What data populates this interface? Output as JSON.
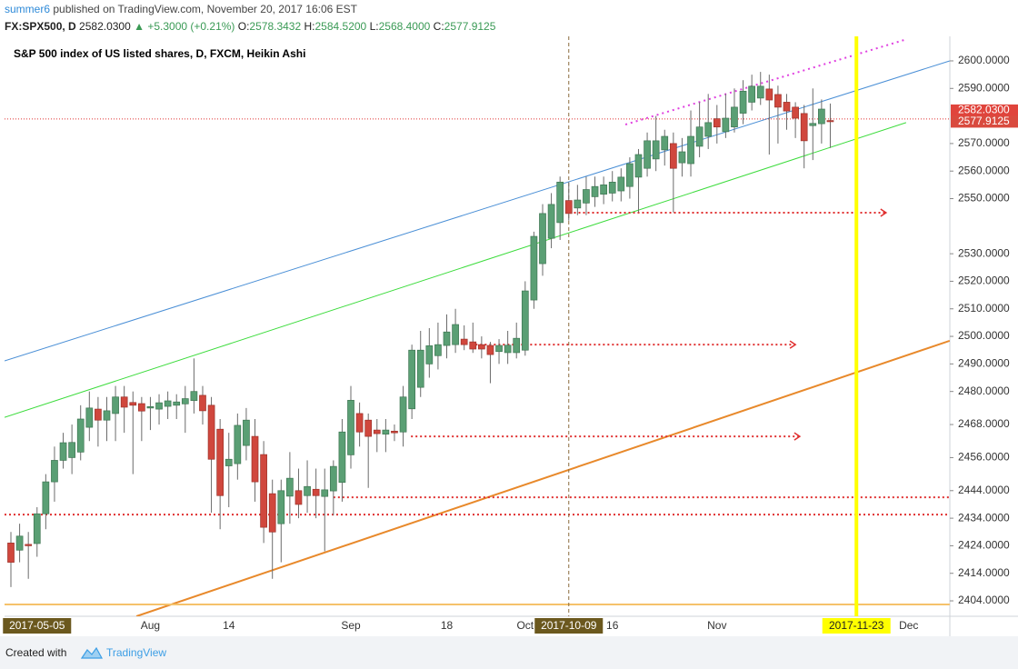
{
  "header": {
    "author": "summer6",
    "published": "published on TradingView.com, November 20, 2017 16:06 EST",
    "symbol": "FX:SPX500, D",
    "change": "▲ +5.3000 (+0.21%)",
    "ohlc": [
      {
        "key": "O:",
        "value": "2578.3432"
      },
      {
        "key": "H:",
        "value": "2584.5200"
      },
      {
        "key": "L:",
        "value": "2568.4000"
      },
      {
        "key": "C:",
        "value": "2577.9125"
      }
    ]
  },
  "footer": {
    "created_with": "Created with",
    "brand": "TradingView"
  },
  "chart_data": {
    "type": "candlestick",
    "title": "S&P 500 index of US listed shares, D, FXCM, Heikin Ashi",
    "up_color": "#5a9f74",
    "down_color": "#d0473d",
    "wick_color": "#6b6b6b",
    "categories": [
      null,
      null,
      null,
      "2017-05-05",
      null,
      null,
      null,
      null,
      null,
      null,
      null,
      null,
      null,
      null,
      null,
      null,
      "Aug",
      null,
      null,
      null,
      null,
      null,
      null,
      null,
      null,
      "14",
      null,
      null,
      null,
      null,
      null,
      null,
      null,
      null,
      null,
      null,
      null,
      null,
      null,
      "Sep",
      null,
      null,
      null,
      null,
      null,
      null,
      null,
      null,
      null,
      null,
      "18",
      null,
      null,
      null,
      null,
      null,
      null,
      null,
      null,
      "Oct",
      null,
      null,
      null,
      null,
      "2017-10-09",
      null,
      null,
      null,
      null,
      "16",
      null,
      null,
      null,
      null,
      null,
      null,
      null,
      null,
      null,
      null,
      null,
      "Nov",
      null,
      null,
      null,
      null,
      null,
      null,
      null,
      null,
      null,
      null,
      null,
      null,
      null,
      null,
      null,
      "2017-11-23",
      null,
      null,
      null,
      null,
      null,
      "Dec",
      null,
      null,
      null,
      null
    ],
    "open": [
      2425,
      2422.4,
      2424.5,
      2424.8,
      2435.6,
      2447.2,
      2455,
      2456,
      2458,
      2467,
      2473.6,
      2469.6,
      2472,
      2478,
      2476,
      2475.6,
      2474,
      2473.6,
      2474.6,
      2475,
      2475.5,
      2476.7,
      2478.6,
      2475,
      2466.3,
      2453,
      2453.8,
      2460.4,
      2463.7,
      2457.1,
      2442.9,
      2432,
      2442,
      2444,
      2442.2,
      2444.5,
      2441.9,
      2443.9,
      2447,
      2457,
      2472,
      2469.6,
      2466,
      2464.5,
      2465.6,
      2465.3,
      2473.7,
      2481.5,
      2490,
      2493,
      2496.7,
      2497,
      2499,
      2498,
      2497,
      2496.7,
      2494.5,
      2494.1,
      2494.1,
      2495,
      2513.2,
      2526.4,
      2535.6,
      2541.3,
      2549.3,
      2546.6,
      2548.4,
      2550.7,
      2551.6,
      2552,
      2552.8,
      2554.4,
      2557.8,
      2561,
      2564.4,
      2567.7,
      2570,
      2563,
      2562.7,
      2569,
      2572.6,
      2579,
      2574.3,
      2576,
      2581,
      2585,
      2586.5,
      2589.8,
      2587.8,
      2585,
      2583.2,
      2580.9,
      2576.5,
      2577.2,
      2578.3432,
      null,
      null,
      null,
      null,
      null,
      null,
      null,
      null,
      null,
      null,
      null,
      null,
      null
    ],
    "high": [
      2429,
      2432,
      2429,
      2438,
      2450,
      2460,
      2465,
      2468,
      2475,
      2480,
      2478,
      2478,
      2482,
      2482,
      2480,
      2478,
      2478,
      2479,
      2480,
      2479,
      2482,
      2492,
      2482,
      2478,
      2470,
      2465,
      2472,
      2474,
      2470,
      2462,
      2448,
      2448,
      2458,
      2452,
      2455,
      2452,
      2452,
      2455,
      2470,
      2482,
      2476,
      2472,
      2470,
      2470,
      2468,
      2482,
      2497,
      2502,
      2503,
      2505,
      2508,
      2510,
      2504,
      2505,
      2500,
      2498,
      2499,
      2502,
      2505,
      2520,
      2538,
      2548,
      2552,
      2558,
      2556,
      2555,
      2558,
      2558,
      2558,
      2560,
      2561,
      2565,
      2568,
      2574,
      2580,
      2575,
      2574,
      2572,
      2582,
      2585,
      2588,
      2584,
      2588,
      2590,
      2593,
      2595,
      2596,
      2595,
      2591,
      2588,
      2585,
      2584,
      2590,
      2586,
      2584.52,
      null,
      null,
      null,
      null,
      null,
      null,
      null,
      null,
      null,
      null,
      null,
      null,
      null
    ],
    "low": [
      2409,
      2418,
      2412,
      2420,
      2430,
      2440,
      2452,
      2450,
      2455,
      2462,
      2460,
      2462,
      2462,
      2465,
      2450,
      2462,
      2466,
      2468,
      2470,
      2470,
      2465,
      2472,
      2468,
      2436,
      2430,
      2438,
      2448,
      2455,
      2440,
      2425,
      2412,
      2418,
      2432,
      2434,
      2436,
      2434,
      2422,
      2435,
      2440,
      2452,
      2460,
      2445,
      2458,
      2458,
      2462,
      2460,
      2470,
      2478,
      2485,
      2488,
      2492,
      2494,
      2495,
      2494,
      2492,
      2483,
      2490,
      2490,
      2492,
      2493,
      2510,
      2522,
      2532,
      2535,
      2542,
      2544,
      2544,
      2547,
      2548,
      2549,
      2549,
      2550,
      2545,
      2558,
      2560,
      2562,
      2545,
      2558,
      2558,
      2565,
      2568,
      2570,
      2572,
      2574,
      2577,
      2582,
      2584,
      2566,
      2570,
      2575,
      2572,
      2561,
      2564,
      2570,
      2568.4,
      null,
      null,
      null,
      null,
      null,
      null,
      null,
      null,
      null,
      null,
      null,
      null,
      null
    ],
    "close": [
      2418,
      2427.5,
      2424,
      2435.6,
      2447.2,
      2455,
      2461.4,
      2461.5,
      2470,
      2474,
      2469.6,
      2473,
      2478,
      2474.3,
      2475,
      2472.9,
      2474.5,
      2475.9,
      2476.6,
      2476.2,
      2477.4,
      2480,
      2473,
      2455.4,
      2442.2,
      2455.4,
      2467.7,
      2469.6,
      2447.2,
      2430.7,
      2429,
      2444,
      2448.5,
      2439,
      2445.5,
      2442.2,
      2444.3,
      2452.8,
      2465.3,
      2476.8,
      2465.3,
      2463.7,
      2464.7,
      2466,
      2465,
      2478,
      2495,
      2495,
      2496.6,
      2497,
      2501.6,
      2504.3,
      2497,
      2495.4,
      2495.4,
      2493.4,
      2496.7,
      2496.8,
      2499.3,
      2516.5,
      2536.3,
      2544.6,
      2547.9,
      2556,
      2544.6,
      2549.5,
      2553.3,
      2554.4,
      2555,
      2556,
      2557.8,
      2562.7,
      2566,
      2571,
      2571,
      2572.6,
      2561,
      2567,
      2572.6,
      2576,
      2577.6,
      2576,
      2579.2,
      2583.2,
      2589,
      2590.8,
      2590.8,
      2585.8,
      2583.2,
      2581.8,
      2579.2,
      2571,
      2577.3,
      2582.5,
      2577.9125,
      null,
      null,
      null,
      null,
      null,
      null,
      null,
      null,
      null,
      null,
      null,
      null,
      null
    ],
    "ylim": [
      2398.4,
      2608.9
    ],
    "yticks": [
      {
        "value": 2600,
        "label": "2600.0000"
      },
      {
        "value": 2590,
        "label": "2590.0000"
      },
      {
        "value": 2570,
        "label": "2570.0000"
      },
      {
        "value": 2560,
        "label": "2560.0000"
      },
      {
        "value": 2550,
        "label": "2550.0000"
      },
      {
        "value": 2530,
        "label": "2530.0000"
      },
      {
        "value": 2520,
        "label": "2520.0000"
      },
      {
        "value": 2510,
        "label": "2510.0000"
      },
      {
        "value": 2500,
        "label": "2500.0000"
      },
      {
        "value": 2490,
        "label": "2490.0000"
      },
      {
        "value": 2480,
        "label": "2480.0000"
      },
      {
        "value": 2468,
        "label": "2468.0000"
      },
      {
        "value": 2456,
        "label": "2456.0000"
      },
      {
        "value": 2444,
        "label": "2444.0000"
      },
      {
        "value": 2434,
        "label": "2434.0000"
      },
      {
        "value": 2424,
        "label": "2424.0000"
      },
      {
        "value": 2414,
        "label": "2414.0000"
      },
      {
        "value": 2404,
        "label": "2404.0000"
      }
    ],
    "price_lines": [
      {
        "value": 2582.03,
        "label": "2582.0300",
        "color": "#e0443c"
      },
      {
        "value": 2577.9125,
        "label": "2577.9125",
        "color": "#d94a3e"
      }
    ],
    "x_markers": [
      {
        "index": 3,
        "color": "#6b581e",
        "text_color": "#ffffff"
      },
      {
        "index": 64,
        "color": "#6b581e",
        "text_color": "#ffffff",
        "line": "dashed",
        "line_color": "#8b6b3d"
      },
      {
        "index": 97,
        "color": "#ffff00",
        "text_color": "#222222",
        "line": "solid",
        "line_color": "#ffff00"
      }
    ],
    "drawings": [
      {
        "color": "#4a8fd6",
        "from": [
          -0.73,
          2491.1
        ],
        "to": [
          107.7,
          2600
        ]
      },
      {
        "color": "#3ddc3d",
        "from": [
          -0.73,
          2470.6
        ],
        "to": [
          102.7,
          2577.6
        ]
      },
      {
        "color": "#e8892b",
        "width": 2,
        "from": [
          14.4,
          2398.4
        ],
        "to": [
          107.7,
          2498.4
        ]
      },
      {
        "color": "#e040e0",
        "width": 2,
        "dash": "2 4",
        "from": [
          70.5,
          2576.9
        ],
        "to": [
          102.5,
          2607.6
        ]
      },
      {
        "color": "#e03030",
        "dash": "1 2",
        "from": [
          -0.73,
          2578.9
        ],
        "to": [
          107.7,
          2578.9
        ]
      },
      {
        "color": "#e03030",
        "width": 2,
        "dash": "2 3",
        "arrow": true,
        "from": [
          64.6,
          2544.9
        ],
        "to": [
          100.4,
          2544.9
        ]
      },
      {
        "color": "#e03030",
        "width": 2,
        "dash": "2 3",
        "arrow": true,
        "from": [
          52.8,
          2497.0
        ],
        "to": [
          90,
          2497.0
        ]
      },
      {
        "color": "#e03030",
        "width": 2,
        "dash": "2 3",
        "arrow": true,
        "from": [
          45.9,
          2463.7
        ],
        "to": [
          90.5,
          2463.7
        ]
      },
      {
        "color": "#e03030",
        "width": 2,
        "dash": "2 3",
        "from": [
          37,
          2441.6
        ],
        "to": [
          107.7,
          2441.6
        ]
      },
      {
        "color": "#e03030",
        "width": 2,
        "dash": "2 3",
        "from": [
          -0.73,
          2435.3
        ],
        "to": [
          107.7,
          2435.3
        ]
      },
      {
        "color": "#f5c26b",
        "width": 2,
        "from": [
          -0.73,
          2402.7
        ],
        "to": [
          107.7,
          2402.7
        ]
      }
    ]
  }
}
